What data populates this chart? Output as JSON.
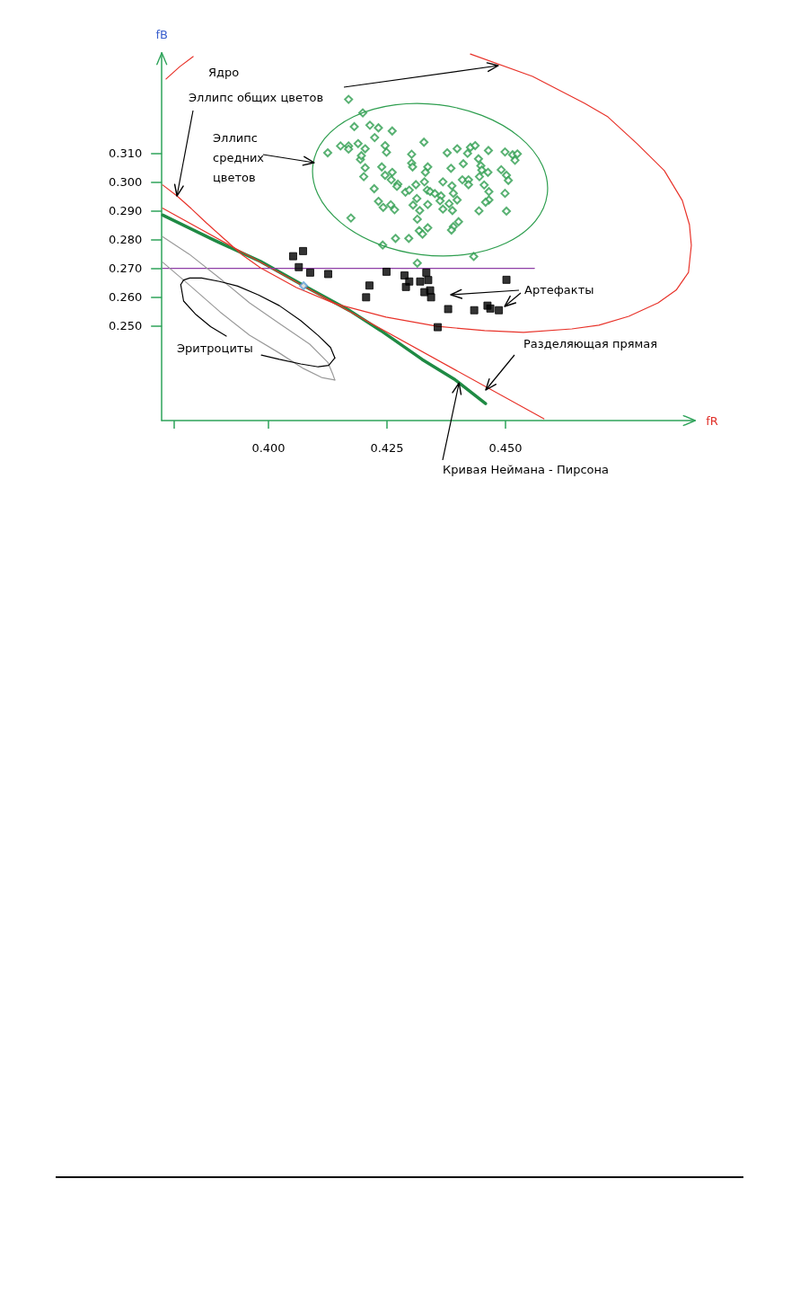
{
  "chart_data": {
    "type": "scatter",
    "xlabel": "fR",
    "ylabel": "fB",
    "annotations": [
      "Ядро",
      {
        "text": "Эллипс общих цветов",
        "x": 0.3807,
        "y": 0.2952
      },
      "Эллипс\nсредних\nцветов",
      "Артефакты",
      "Разделяющая прямая",
      "Эритроциты",
      {
        "text": "Кривая Неймана - Пирсона",
        "x": 0.4402,
        "y": 0.2301
      }
    ],
    "xlim": [
      0.3775,
      0.49
    ],
    "ylim": [
      0.217,
      0.345
    ],
    "xticks": [
      {
        "value": 0.38,
        "label": null
      },
      {
        "value": 0.4,
        "label": "0.400"
      },
      {
        "value": 0.425,
        "label": "0.425"
      },
      {
        "value": 0.45,
        "label": "0.450"
      }
    ],
    "yticks": [
      {
        "value": 0.25,
        "label": "0.250"
      },
      {
        "value": 0.26,
        "label": "0.260"
      },
      {
        "value": 0.27,
        "label": "0.270"
      },
      {
        "value": 0.28,
        "label": "0.280"
      },
      {
        "value": 0.29,
        "label": "0.290"
      },
      {
        "value": 0.3,
        "label": "0.300"
      },
      {
        "value": 0.31,
        "label": "0.310"
      }
    ],
    "grid": false,
    "series": [
      {
        "type": "line",
        "marker": "none",
        "color": "#1f8a44",
        "x": [
          0.3777,
          0.3888,
          0.3983,
          0.4072,
          0.4172,
          0.4237,
          0.4324,
          0.4392,
          0.4458
        ],
        "values": [
          0.2885,
          0.2796,
          0.2724,
          0.2642,
          0.2552,
          0.2483,
          0.2383,
          0.2314,
          0.2229
        ]
      },
      {
        "type": "line",
        "marker": "none",
        "color": "#e8332a",
        "x": [
          0.3777,
          0.4581
        ],
        "values": [
          0.2909,
          0.2176
        ]
      },
      {
        "type": "line",
        "marker": "none",
        "color": "#8e3fa6",
        "x": [
          0.3777,
          0.4561
        ],
        "values": [
          0.27,
          0.27
        ]
      },
      {
        "type": "line",
        "marker": "none",
        "color": "#e8332a",
        "x": [
          0.3841,
          0.3813,
          0.3784,
          null,
          0.3777,
          0.3807,
          0.3837,
          0.3869,
          0.3907,
          0.3945,
          0.3983,
          0.4059,
          0.414,
          0.4248,
          0.4356,
          0.4456,
          0.4538,
          0.464,
          0.4697,
          0.476,
          0.4822,
          0.486,
          0.4886,
          0.4892,
          0.4888,
          0.4873,
          0.4835,
          0.4778,
          0.4716,
          0.4667,
          0.4557,
          0.4426
        ],
        "values": [
          0.3437,
          0.3402,
          0.3359,
          null,
          0.299,
          0.2952,
          0.2908,
          0.2858,
          0.2802,
          0.2746,
          0.2702,
          0.2633,
          0.2577,
          0.253,
          0.2498,
          0.2483,
          0.2477,
          0.2489,
          0.2502,
          0.2533,
          0.258,
          0.2624,
          0.2686,
          0.278,
          0.2852,
          0.2936,
          0.304,
          0.3133,
          0.3227,
          0.3274,
          0.3368,
          0.3446
        ]
      },
      {
        "type": "line",
        "marker": "none",
        "color": "#9a9a9a",
        "x": [
          0.3777,
          0.3833,
          0.3898,
          0.396,
          0.4023,
          0.4087,
          0.4125,
          0.4136,
          0.414
        ],
        "values": [
          0.281,
          0.2749,
          0.2664,
          0.258,
          0.2508,
          0.2436,
          0.2373,
          0.233,
          0.2311
        ]
      },
      {
        "type": "line",
        "marker": "none",
        "color": "#9a9a9a",
        "x": [
          0.3777,
          0.3833,
          0.3898,
          0.396,
          0.4023,
          0.4074,
          0.4112,
          0.414
        ],
        "values": [
          0.2721,
          0.2642,
          0.2548,
          0.2467,
          0.2405,
          0.2351,
          0.232,
          0.2311
        ]
      },
      {
        "type": "line",
        "marker": "none",
        "color": "#000000",
        "x": [
          0.3815,
          0.3821,
          0.3834,
          0.3859,
          0.3897,
          0.3935,
          0.3979,
          0.4023,
          0.4068,
          0.4105,
          0.4131,
          0.414
        ],
        "values": [
          0.2643,
          0.2659,
          0.2666,
          0.2666,
          0.2654,
          0.2638,
          0.2607,
          0.257,
          0.2518,
          0.2466,
          0.2424,
          0.2388
        ]
      },
      {
        "type": "line",
        "marker": "none",
        "color": "#000000",
        "x": [
          0.3815,
          0.3821,
          0.3847,
          0.3878,
          0.3911,
          null,
          0.3985,
          0.4023,
          0.4068,
          0.4105,
          0.4127,
          0.414
        ],
        "values": [
          0.2643,
          0.2586,
          0.2539,
          0.2497,
          0.2464,
          null,
          0.2398,
          0.2383,
          0.2367,
          0.2357,
          0.2362,
          0.2388
        ]
      },
      {
        "marker": "diamond",
        "color": "#2e9e4f",
        "x": [
          0.4169,
          0.4199,
          0.4181,
          0.4214,
          0.4232,
          0.4261,
          0.4224,
          0.4328,
          0.4152,
          0.4169,
          0.4169,
          0.4189,
          0.4204,
          0.4125,
          0.4246,
          0.4249,
          0.4302,
          0.4377,
          0.4398,
          0.4426,
          0.4436,
          0.442,
          0.4464,
          0.4499,
          0.4515,
          0.4525,
          0.452,
          0.4194,
          0.4196,
          0.4204,
          0.4239,
          0.4302,
          0.4304,
          0.4336,
          0.4331,
          0.4385,
          0.4411,
          0.4443,
          0.4448,
          0.445,
          0.4463,
          0.4445,
          0.4491,
          0.4502,
          0.4201,
          0.4246,
          0.4261,
          0.4259,
          0.4273,
          0.4271,
          0.4223,
          0.4289,
          0.4297,
          0.4311,
          0.4329,
          0.4368,
          0.4387,
          0.439,
          0.4409,
          0.4422,
          0.4422,
          0.4455,
          0.4506,
          0.4335,
          0.4341,
          0.4351,
          0.4364,
          0.4362,
          0.4381,
          0.4398,
          0.4465,
          0.4465,
          0.4458,
          0.4499,
          0.4232,
          0.4242,
          0.4258,
          0.4266,
          0.4305,
          0.4313,
          0.4336,
          0.4319,
          0.4368,
          0.4388,
          0.4444,
          0.4502,
          0.4314,
          0.4174,
          0.4318,
          0.4336,
          0.4325,
          0.439,
          0.4401,
          0.4386,
          0.4268,
          0.4296,
          0.4241,
          0.4433,
          0.4314
        ],
        "values": [
          0.3288,
          0.3241,
          0.3193,
          0.3198,
          0.3189,
          0.3178,
          0.3155,
          0.3139,
          0.3126,
          0.3126,
          0.3115,
          0.3134,
          0.3116,
          0.3102,
          0.3127,
          0.3104,
          0.3097,
          0.3102,
          0.3116,
          0.3121,
          0.3127,
          0.31,
          0.311,
          0.3105,
          0.3095,
          0.3098,
          0.3076,
          0.3079,
          0.3092,
          0.305,
          0.3053,
          0.3066,
          0.3053,
          0.3053,
          0.3034,
          0.3048,
          0.3064,
          0.3081,
          0.3057,
          0.3042,
          0.3034,
          0.3019,
          0.3043,
          0.3024,
          0.3019,
          0.3024,
          0.3034,
          0.3008,
          0.2993,
          0.2985,
          0.2977,
          0.2965,
          0.2972,
          0.2991,
          0.3001,
          0.3001,
          0.2987,
          0.2961,
          0.3008,
          0.3008,
          0.2991,
          0.299,
          0.3006,
          0.2972,
          0.2967,
          0.296,
          0.2952,
          0.2935,
          0.2925,
          0.2938,
          0.2967,
          0.2938,
          0.293,
          0.2961,
          0.2933,
          0.2912,
          0.2921,
          0.2904,
          0.292,
          0.2943,
          0.2922,
          0.2901,
          0.2906,
          0.2901,
          0.29,
          0.2899,
          0.2871,
          0.2875,
          0.2831,
          0.2841,
          0.2819,
          0.2845,
          0.2862,
          0.2833,
          0.2804,
          0.2804,
          0.2781,
          0.2741,
          0.2718
        ]
      },
      {
        "marker": "square",
        "color": "#000000",
        "x": [
          0.4052,
          0.4073,
          0.4064,
          0.4088,
          0.4126,
          0.4213,
          0.4206,
          0.4249,
          0.4287,
          0.4297,
          0.429,
          0.432,
          0.4333,
          0.4337,
          0.4329,
          0.4341,
          0.4343,
          0.4379,
          0.4434,
          0.4462,
          0.4468,
          0.4486,
          0.4502,
          0.4357
        ],
        "values": [
          0.2742,
          0.276,
          0.2704,
          0.2685,
          0.268,
          0.264,
          0.2599,
          0.2688,
          0.2675,
          0.2654,
          0.2635,
          0.2654,
          0.2685,
          0.2659,
          0.2617,
          0.2623,
          0.2599,
          0.2558,
          0.2554,
          0.257,
          0.256,
          0.2554,
          0.266,
          0.2495
        ]
      },
      {
        "marker": "diamond",
        "color": "#5b9bd5",
        "x": [
          0.4074
        ],
        "values": [
          0.2639
        ]
      }
    ]
  }
}
